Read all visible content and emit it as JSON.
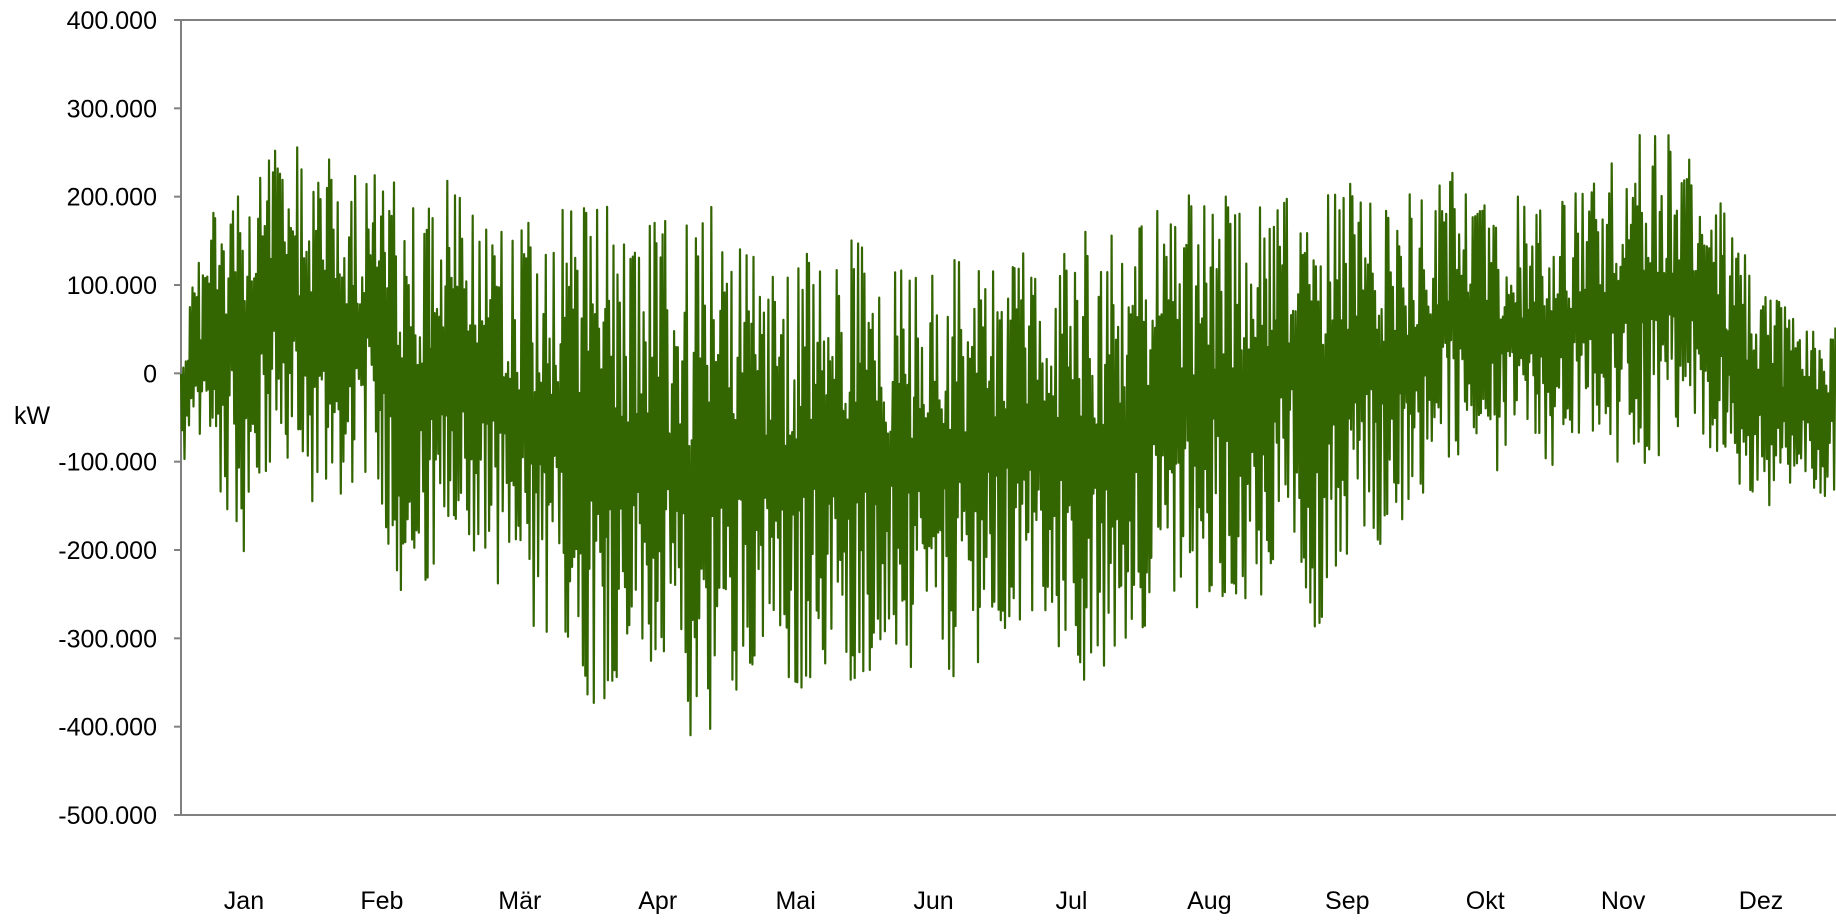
{
  "chart_data": {
    "type": "line",
    "title": "",
    "xlabel": "",
    "ylabel": "kW",
    "ylim": [
      -500000,
      400000
    ],
    "y_ticks": [
      400000,
      300000,
      200000,
      100000,
      0,
      -100000,
      -200000,
      -300000,
      -400000,
      -500000
    ],
    "y_tick_labels": [
      "400.000",
      "300.000",
      "200.000",
      "100.000",
      "0",
      "-100.000",
      "-200.000",
      "-300.000",
      "-400.000",
      "-500.000"
    ],
    "x_unit": "day of year",
    "xlim": [
      0,
      365
    ],
    "x_tick_labels": [
      "Jan",
      "Feb",
      "Mär",
      "Apr",
      "Mai",
      "Jun",
      "Jul",
      "Aug",
      "Sep",
      "Okt",
      "Nov",
      "Dez"
    ],
    "grid": false,
    "legend": "none",
    "series": [
      {
        "color": "#336600",
        "x": [
          0,
          7,
          14,
          21,
          28,
          35,
          42,
          49,
          56,
          63,
          70,
          77,
          84,
          91,
          98,
          105,
          112,
          119,
          126,
          133,
          140,
          147,
          154,
          161,
          168,
          175,
          182,
          189,
          196,
          203,
          210,
          217,
          224,
          231,
          238,
          245,
          252,
          259,
          266,
          273,
          280,
          287,
          294,
          301,
          308,
          315,
          322,
          329,
          336,
          343,
          350,
          357,
          364
        ],
        "max": [
          45000,
          220000,
          215000,
          270000,
          260000,
          250000,
          230000,
          215000,
          225000,
          210000,
          195000,
          190000,
          185000,
          200000,
          180000,
          175000,
          180000,
          195000,
          150000,
          150000,
          155000,
          160000,
          150000,
          130000,
          145000,
          155000,
          150000,
          140000,
          150000,
          185000,
          180000,
          190000,
          210000,
          215000,
          215000,
          215000,
          215000,
          215000,
          210000,
          215000,
          230000,
          200000,
          205000,
          195000,
          210000,
          240000,
          275000,
          270000,
          240000,
          150000,
          105000,
          90000,
          60000
        ],
        "min": [
          -110000,
          -115000,
          -205000,
          -100000,
          -150000,
          -145000,
          -110000,
          -270000,
          -260000,
          -215000,
          -240000,
          -310000,
          -310000,
          -380000,
          -355000,
          -355000,
          -430000,
          -400000,
          -330000,
          -390000,
          -340000,
          -360000,
          -330000,
          -350000,
          -355000,
          -330000,
          -310000,
          -290000,
          -340000,
          -375000,
          -290000,
          -290000,
          -270000,
          -255000,
          -255000,
          -200000,
          -320000,
          -180000,
          -200000,
          -155000,
          -110000,
          -120000,
          -120000,
          -110000,
          -100000,
          -100000,
          -110000,
          -90000,
          -100000,
          -130000,
          -160000,
          -165000,
          -135000
        ]
      }
    ]
  }
}
